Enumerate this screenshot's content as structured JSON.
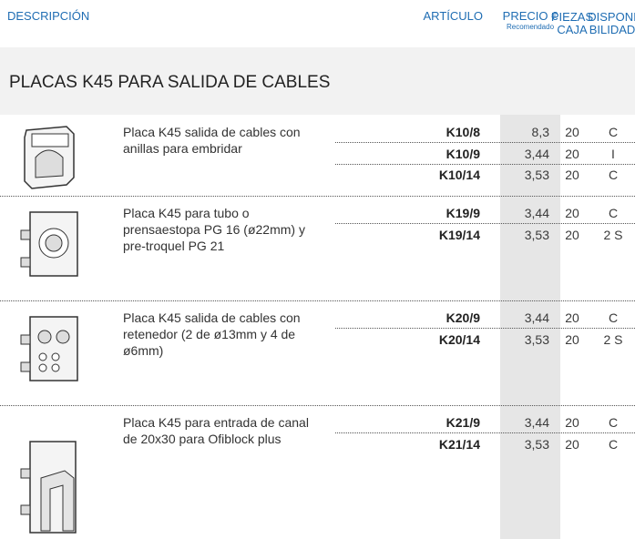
{
  "header": {
    "columns": [
      {
        "lines": [
          "DESCRIPCIÓN"
        ]
      },
      {
        "lines": [
          "ARTÍCULO"
        ]
      },
      {
        "lines": [
          "PRECIO €"
        ],
        "note": "Recomendado"
      },
      {
        "lines": [
          "PIEZAS",
          "CAJA"
        ]
      },
      {
        "lines": [
          "DISPONI",
          "BILIDAD"
        ]
      }
    ]
  },
  "section": {
    "title": "PLACAS K45 PARA SALIDA DE CABLES"
  },
  "products": [
    {
      "description": [
        "Placa K45 salida de cables con",
        "anillas para embridar"
      ],
      "rows": [
        [
          "K10/8",
          "8,3",
          "20",
          "C"
        ],
        [
          "K10/9",
          "3,44",
          "20",
          "I"
        ],
        [
          "K10/14",
          "3,53",
          "20",
          "C"
        ]
      ]
    },
    {
      "description": [
        "Placa K45 para tubo o",
        "prensaestopa PG 16 (ø22mm) y",
        "pre-troquel PG 21"
      ],
      "rows": [
        [
          "K19/9",
          "3,44",
          "20",
          "C"
        ],
        [
          "K19/14",
          "3,53",
          "20",
          "2 S"
        ]
      ]
    },
    {
      "description": [
        "Placa K45 salida de cables con",
        "retenedor (2 de ø13mm y 4 de",
        "ø6mm)"
      ],
      "rows": [
        [
          "K20/9",
          "3,44",
          "20",
          "C"
        ],
        [
          "K20/14",
          "3,53",
          "20",
          "2 S"
        ]
      ]
    },
    {
      "description": [
        "Placa K45 para entrada de canal",
        "de 20x30 para Ofiblock plus"
      ],
      "rows": [
        [
          "K21/9",
          "3,44",
          "20",
          "C"
        ],
        [
          "K21/14",
          "3,53",
          "20",
          "C"
        ]
      ]
    }
  ]
}
